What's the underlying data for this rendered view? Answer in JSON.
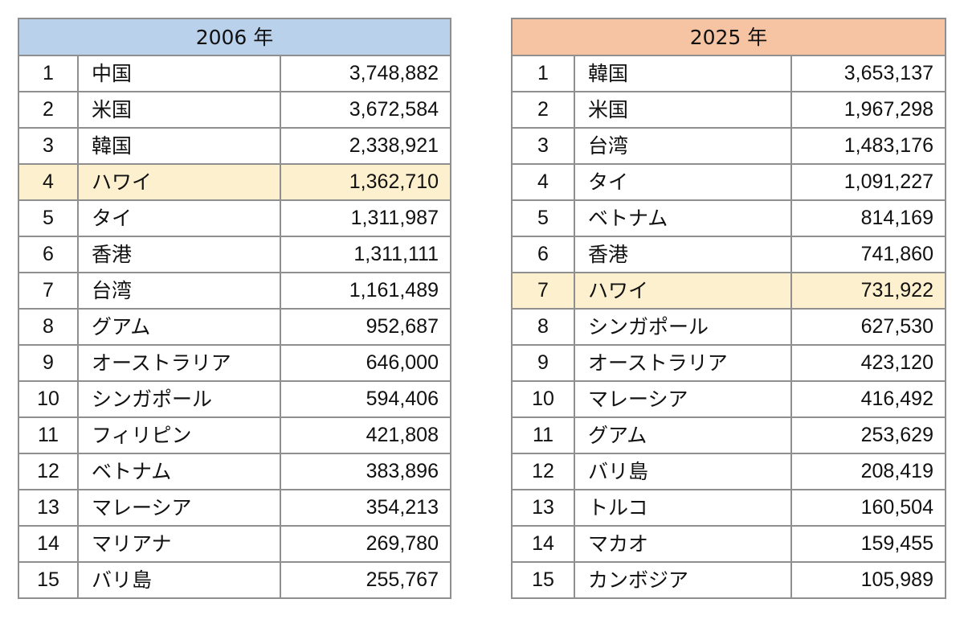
{
  "tables": [
    {
      "header": "2006 年",
      "highlight_rank": "4",
      "rows": [
        {
          "rank": "1",
          "name": "中国",
          "value": "3,748,882"
        },
        {
          "rank": "2",
          "name": "米国",
          "value": "3,672,584"
        },
        {
          "rank": "3",
          "name": "韓国",
          "value": "2,338,921"
        },
        {
          "rank": "4",
          "name": "ハワイ",
          "value": "1,362,710"
        },
        {
          "rank": "5",
          "name": "タイ",
          "value": "1,311,987"
        },
        {
          "rank": "6",
          "name": "香港",
          "value": "1,311,111"
        },
        {
          "rank": "7",
          "name": "台湾",
          "value": "1,161,489"
        },
        {
          "rank": "8",
          "name": "グアム",
          "value": "952,687"
        },
        {
          "rank": "9",
          "name": "オーストラリア",
          "value": "646,000"
        },
        {
          "rank": "10",
          "name": "シンガポール",
          "value": "594,406"
        },
        {
          "rank": "11",
          "name": "フィリピン",
          "value": "421,808"
        },
        {
          "rank": "12",
          "name": "ベトナム",
          "value": "383,896"
        },
        {
          "rank": "13",
          "name": "マレーシア",
          "value": "354,213"
        },
        {
          "rank": "14",
          "name": "マリアナ",
          "value": "269,780"
        },
        {
          "rank": "15",
          "name": "バリ島",
          "value": "255,767"
        }
      ]
    },
    {
      "header": "2025 年",
      "highlight_rank": "7",
      "rows": [
        {
          "rank": "1",
          "name": "韓国",
          "value": "3,653,137"
        },
        {
          "rank": "2",
          "name": "米国",
          "value": "1,967,298"
        },
        {
          "rank": "3",
          "name": "台湾",
          "value": "1,483,176"
        },
        {
          "rank": "4",
          "name": "タイ",
          "value": "1,091,227"
        },
        {
          "rank": "5",
          "name": "ベトナム",
          "value": "814,169"
        },
        {
          "rank": "6",
          "name": "香港",
          "value": "741,860"
        },
        {
          "rank": "7",
          "name": "ハワイ",
          "value": "731,922"
        },
        {
          "rank": "8",
          "name": "シンガポール",
          "value": "627,530"
        },
        {
          "rank": "9",
          "name": "オーストラリア",
          "value": "423,120"
        },
        {
          "rank": "10",
          "name": "マレーシア",
          "value": "416,492"
        },
        {
          "rank": "11",
          "name": "グアム",
          "value": "253,629"
        },
        {
          "rank": "12",
          "name": "バリ島",
          "value": "208,419"
        },
        {
          "rank": "13",
          "name": "トルコ",
          "value": "160,504"
        },
        {
          "rank": "14",
          "name": "マカオ",
          "value": "159,455"
        },
        {
          "rank": "15",
          "name": "カンボジア",
          "value": "105,989"
        }
      ]
    }
  ]
}
